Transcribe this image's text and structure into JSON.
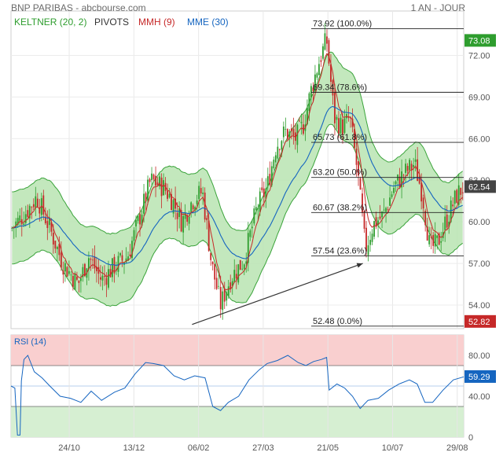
{
  "header": {
    "title": "BNP PARIBAS - abcbourse.com",
    "period": "1 AN - JOUR"
  },
  "indicators": [
    {
      "label": "KELTNER (20, 2)",
      "color": "#2e9d2e"
    },
    {
      "label": "PIVOTS",
      "color": "#333333"
    },
    {
      "label": "MMH (9)",
      "color": "#c62828"
    },
    {
      "label": "MME (30)",
      "color": "#1565c0"
    }
  ],
  "colors": {
    "up": "#2e9d2e",
    "down": "#c62828",
    "band_fill": "#b9e4b2",
    "band_line": "#3aa33a",
    "mme": "#1565c0",
    "mmh": "#c62828",
    "rsi_line": "#1565c0",
    "rsi_high_zone": "#f9cfcf",
    "rsi_low_zone": "#d6efd2",
    "last_price_badge": "#2e9d2e",
    "low_badge": "#c62828",
    "high_badge": "#2e9d2e"
  },
  "chart_data": [
    {
      "type": "candlestick",
      "title": "BNP PARIBAS",
      "ylim": [
        52.3,
        75.2
      ],
      "y_ticks": [
        "72.00",
        "69.00",
        "66.00",
        "63.00",
        "60.00",
        "57.00",
        "54.00"
      ],
      "x_tick_labels": [
        "24/10",
        "13/12",
        "06/02",
        "27/03",
        "21/05",
        "10/07",
        "29/08"
      ],
      "price_path": [
        {
          "t": 0,
          "v": 59.5
        },
        {
          "t": 10,
          "v": 60.5
        },
        {
          "t": 20,
          "v": 61.8
        },
        {
          "t": 30,
          "v": 59.5
        },
        {
          "t": 40,
          "v": 57.0
        },
        {
          "t": 52,
          "v": 55.5
        },
        {
          "t": 60,
          "v": 57.5
        },
        {
          "t": 70,
          "v": 55.8
        },
        {
          "t": 80,
          "v": 56.8
        },
        {
          "t": 90,
          "v": 57.5
        },
        {
          "t": 100,
          "v": 60.5
        },
        {
          "t": 108,
          "v": 63.0
        },
        {
          "t": 118,
          "v": 62.5
        },
        {
          "t": 125,
          "v": 61.5
        },
        {
          "t": 132,
          "v": 60.0
        },
        {
          "t": 140,
          "v": 61.5
        },
        {
          "t": 148,
          "v": 62.2
        },
        {
          "t": 155,
          "v": 57.0
        },
        {
          "t": 162,
          "v": 54.0
        },
        {
          "t": 170,
          "v": 56.0
        },
        {
          "t": 180,
          "v": 57.2
        },
        {
          "t": 190,
          "v": 61.0
        },
        {
          "t": 198,
          "v": 62.5
        },
        {
          "t": 205,
          "v": 65.5
        },
        {
          "t": 212,
          "v": 66.5
        },
        {
          "t": 220,
          "v": 66.0
        },
        {
          "t": 226,
          "v": 67.0
        },
        {
          "t": 232,
          "v": 69.5
        },
        {
          "t": 238,
          "v": 71.5
        },
        {
          "t": 244,
          "v": 73.2
        },
        {
          "t": 250,
          "v": 67.5
        },
        {
          "t": 256,
          "v": 66.8
        },
        {
          "t": 262,
          "v": 67.5
        },
        {
          "t": 268,
          "v": 63.5
        },
        {
          "t": 274,
          "v": 58.0
        },
        {
          "t": 280,
          "v": 59.8
        },
        {
          "t": 288,
          "v": 60.5
        },
        {
          "t": 296,
          "v": 62.5
        },
        {
          "t": 304,
          "v": 63.5
        },
        {
          "t": 312,
          "v": 64.2
        },
        {
          "t": 318,
          "v": 62.0
        },
        {
          "t": 324,
          "v": 58.0
        },
        {
          "t": 330,
          "v": 58.5
        },
        {
          "t": 336,
          "v": 60.0
        },
        {
          "t": 345,
          "v": 62.0
        },
        {
          "t": 350,
          "v": 62.5
        }
      ],
      "series": [
        {
          "name": "KELTNER (20, 2)"
        },
        {
          "name": "MMH (9)"
        },
        {
          "name": "MME (30)"
        }
      ]
    },
    {
      "type": "fibonacci_levels",
      "levels": [
        {
          "value": 73.92,
          "label": "73.92  (100.0%)"
        },
        {
          "value": 69.34,
          "label": "69.34  (78.6%)"
        },
        {
          "value": 65.73,
          "label": "65.73  (61.8%)"
        },
        {
          "value": 63.2,
          "label": "63.20  (50.0%)"
        },
        {
          "value": 60.67,
          "label": "60.67  (38.2%)"
        },
        {
          "value": 57.54,
          "label": "57.54  (23.6%)"
        },
        {
          "value": 52.48,
          "label": "52.48  (0.0%)"
        }
      ],
      "badges": [
        {
          "value": 73.08,
          "label": "73.08",
          "kind": "high"
        },
        {
          "value": 62.54,
          "label": "62.54",
          "kind": "last"
        },
        {
          "value": 52.82,
          "label": "52.82",
          "kind": "low"
        }
      ],
      "trendline": {
        "from": {
          "t": 140,
          "v": 52.6
        },
        "to": {
          "t": 272,
          "v": 57.0
        }
      }
    },
    {
      "type": "line",
      "title": "RSI (14)",
      "ylim": [
        0,
        100
      ],
      "y_ticks": [
        "80.00",
        "40.00",
        "0"
      ],
      "zones": {
        "high": 70,
        "low": 30
      },
      "reference": 50,
      "badge": "59.29",
      "path": [
        {
          "t": 0,
          "v": 50
        },
        {
          "t": 3,
          "v": 48
        },
        {
          "t": 5,
          "v": 2
        },
        {
          "t": 7,
          "v": 2
        },
        {
          "t": 8,
          "v": 55
        },
        {
          "t": 10,
          "v": 76
        },
        {
          "t": 13,
          "v": 80
        },
        {
          "t": 18,
          "v": 64
        },
        {
          "t": 24,
          "v": 58
        },
        {
          "t": 30,
          "v": 50
        },
        {
          "t": 38,
          "v": 40
        },
        {
          "t": 46,
          "v": 38
        },
        {
          "t": 54,
          "v": 34
        },
        {
          "t": 62,
          "v": 45
        },
        {
          "t": 70,
          "v": 36
        },
        {
          "t": 80,
          "v": 44
        },
        {
          "t": 88,
          "v": 48
        },
        {
          "t": 96,
          "v": 62
        },
        {
          "t": 104,
          "v": 73
        },
        {
          "t": 110,
          "v": 72
        },
        {
          "t": 118,
          "v": 70
        },
        {
          "t": 126,
          "v": 60
        },
        {
          "t": 134,
          "v": 56
        },
        {
          "t": 142,
          "v": 60
        },
        {
          "t": 150,
          "v": 58
        },
        {
          "t": 156,
          "v": 30
        },
        {
          "t": 162,
          "v": 26
        },
        {
          "t": 168,
          "v": 34
        },
        {
          "t": 176,
          "v": 40
        },
        {
          "t": 184,
          "v": 56
        },
        {
          "t": 192,
          "v": 66
        },
        {
          "t": 198,
          "v": 72
        },
        {
          "t": 206,
          "v": 75
        },
        {
          "t": 214,
          "v": 80
        },
        {
          "t": 222,
          "v": 73
        },
        {
          "t": 228,
          "v": 70
        },
        {
          "t": 234,
          "v": 74
        },
        {
          "t": 240,
          "v": 76
        },
        {
          "t": 244,
          "v": 78
        },
        {
          "t": 246,
          "v": 46
        },
        {
          "t": 252,
          "v": 52
        },
        {
          "t": 258,
          "v": 48
        },
        {
          "t": 264,
          "v": 40
        },
        {
          "t": 270,
          "v": 28
        },
        {
          "t": 276,
          "v": 36
        },
        {
          "t": 284,
          "v": 38
        },
        {
          "t": 292,
          "v": 46
        },
        {
          "t": 300,
          "v": 52
        },
        {
          "t": 308,
          "v": 56
        },
        {
          "t": 314,
          "v": 52
        },
        {
          "t": 320,
          "v": 34
        },
        {
          "t": 326,
          "v": 34
        },
        {
          "t": 334,
          "v": 46
        },
        {
          "t": 342,
          "v": 56
        },
        {
          "t": 350,
          "v": 59
        }
      ]
    }
  ]
}
